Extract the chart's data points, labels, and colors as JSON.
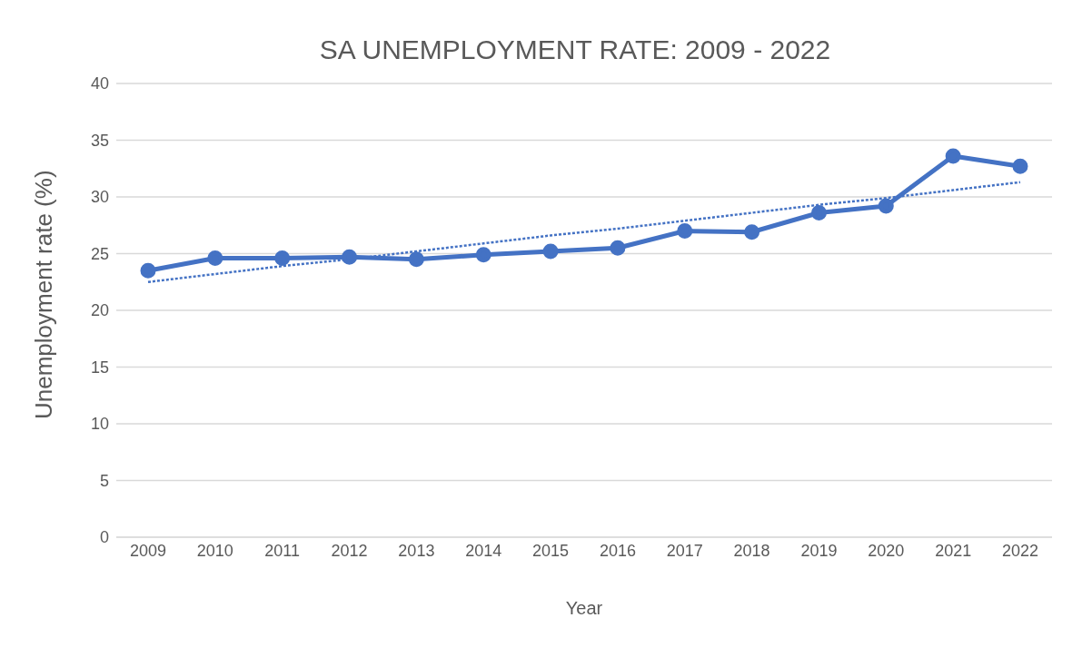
{
  "chart_data": {
    "type": "line",
    "title": "SA UNEMPLOYMENT RATE: 2009 - 2022",
    "xlabel": "Year",
    "ylabel": "Unemployment rate (%)",
    "categories": [
      "2009",
      "2010",
      "2011",
      "2012",
      "2013",
      "2014",
      "2015",
      "2016",
      "2017",
      "2018",
      "2019",
      "2020",
      "2021",
      "2022"
    ],
    "series": [
      {
        "color": "#4472c4",
        "marker": "circle",
        "line_style": "solid",
        "values": [
          23.5,
          24.6,
          24.6,
          24.7,
          24.5,
          24.9,
          25.2,
          25.5,
          27.0,
          26.9,
          28.6,
          29.2,
          33.6,
          32.7
        ]
      },
      {
        "type": "line",
        "color": "#4472c4",
        "marker": "none",
        "line_style": "dotted",
        "values": [
          22.5,
          23.2,
          23.9,
          24.5,
          25.2,
          25.9,
          26.6,
          27.2,
          27.9,
          28.6,
          29.3,
          29.9,
          30.6,
          31.3
        ]
      }
    ],
    "ylim": [
      0,
      40
    ],
    "yticks": [
      0,
      5,
      10,
      15,
      20,
      25,
      30,
      35,
      40
    ],
    "grid": "y",
    "legend": false
  }
}
